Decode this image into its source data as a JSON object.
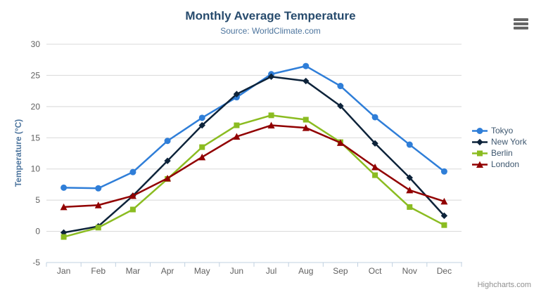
{
  "chart_data": {
    "type": "line",
    "title": "Monthly Average Temperature",
    "subtitle": "Source: WorldClimate.com",
    "xlabel": "",
    "ylabel": "Temperature (°C)",
    "ylim": [
      -5,
      30
    ],
    "ytick_interval": 5,
    "grid": true,
    "legend_position": "right",
    "categories": [
      "Jan",
      "Feb",
      "Mar",
      "Apr",
      "May",
      "Jun",
      "Jul",
      "Aug",
      "Sep",
      "Oct",
      "Nov",
      "Dec"
    ],
    "series": [
      {
        "name": "Tokyo",
        "color": "#2f7ed8",
        "marker": "circle",
        "values": [
          7.0,
          6.9,
          9.5,
          14.5,
          18.2,
          21.5,
          25.2,
          26.5,
          23.3,
          18.3,
          13.9,
          9.6
        ]
      },
      {
        "name": "New York",
        "color": "#0d233a",
        "marker": "diamond",
        "values": [
          -0.2,
          0.8,
          5.7,
          11.3,
          17.0,
          22.0,
          24.8,
          24.1,
          20.1,
          14.1,
          8.6,
          2.5
        ]
      },
      {
        "name": "Berlin",
        "color": "#8bbc21",
        "marker": "square",
        "values": [
          -0.9,
          0.6,
          3.5,
          8.4,
          13.5,
          17.0,
          18.6,
          17.9,
          14.3,
          9.0,
          3.9,
          1.0
        ]
      },
      {
        "name": "London",
        "color": "#910000",
        "marker": "triangle",
        "values": [
          3.9,
          4.2,
          5.7,
          8.5,
          11.9,
          15.2,
          17.0,
          16.6,
          14.2,
          10.3,
          6.6,
          4.8
        ]
      }
    ]
  },
  "export_menu": {
    "icon": "hamburger-icon"
  },
  "credits": {
    "label": "Highcharts.com"
  },
  "colors": {
    "title_color": "#274b6d",
    "subtitle_color": "#4d759e",
    "axis_title_color": "#4d759e",
    "tick_label_color": "#606060",
    "grid_color": "#d8d8d8",
    "axis_line_color": "#c0d0e0",
    "legend_text_color": "#3e576f",
    "credits_color": "#909090",
    "menu_icon_color": "#666666",
    "background": "#ffffff"
  }
}
